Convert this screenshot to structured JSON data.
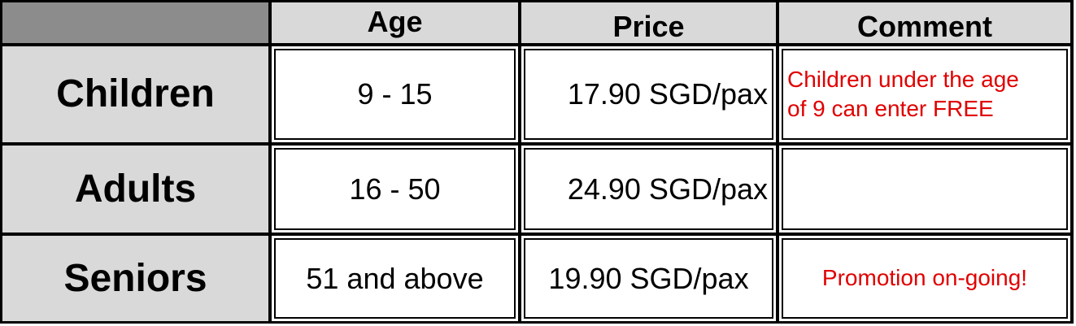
{
  "table": {
    "headers": [
      "",
      "Age",
      "Price",
      "Comment"
    ],
    "rows": [
      {
        "category": "Children",
        "age": "9 - 15",
        "price": "17.90 SGD/pax",
        "comment_lines": [
          "Children under the age",
          "of 9 can enter FREE"
        ]
      },
      {
        "category": "Adults",
        "age": "16 - 50",
        "price": "24.90 SGD/pax",
        "comment_lines": []
      },
      {
        "category": "Seniors",
        "age": "51 and above",
        "price": "19.90 SGD/pax",
        "comment_lines": [
          "Promotion on-going!"
        ]
      }
    ]
  },
  "colors": {
    "comment_text": "#e00000",
    "label_bg": "#d9d9d9",
    "corner_bg": "#8c8c8c",
    "cell_bg": "#ffffff",
    "grid": "#000000"
  }
}
